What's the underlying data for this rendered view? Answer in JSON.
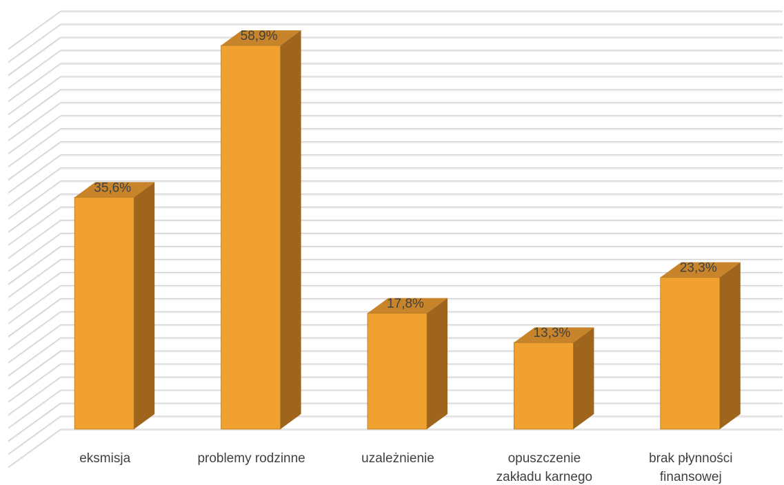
{
  "chart_data": {
    "type": "bar",
    "categories": [
      [
        "eksmisja"
      ],
      [
        "problemy rodzinne"
      ],
      [
        "uzależnienie"
      ],
      [
        "opuszczenie",
        "zakładu karnego"
      ],
      [
        "brak płynności",
        "finansowej"
      ]
    ],
    "values": [
      35.6,
      58.9,
      17.8,
      13.3,
      23.3
    ],
    "data_labels": [
      "35,6%",
      "58,9%",
      "17,8%",
      "13,3%",
      "23,3%"
    ],
    "title": "",
    "xlabel": "",
    "ylabel": "",
    "ylim": [
      0,
      64
    ],
    "grid": true,
    "legend": "none",
    "colors": {
      "bar_front": "#f0a12f",
      "bar_side": "#9f651c",
      "bar_top": "#c7842a",
      "bar_edge": "#b07a26"
    }
  }
}
